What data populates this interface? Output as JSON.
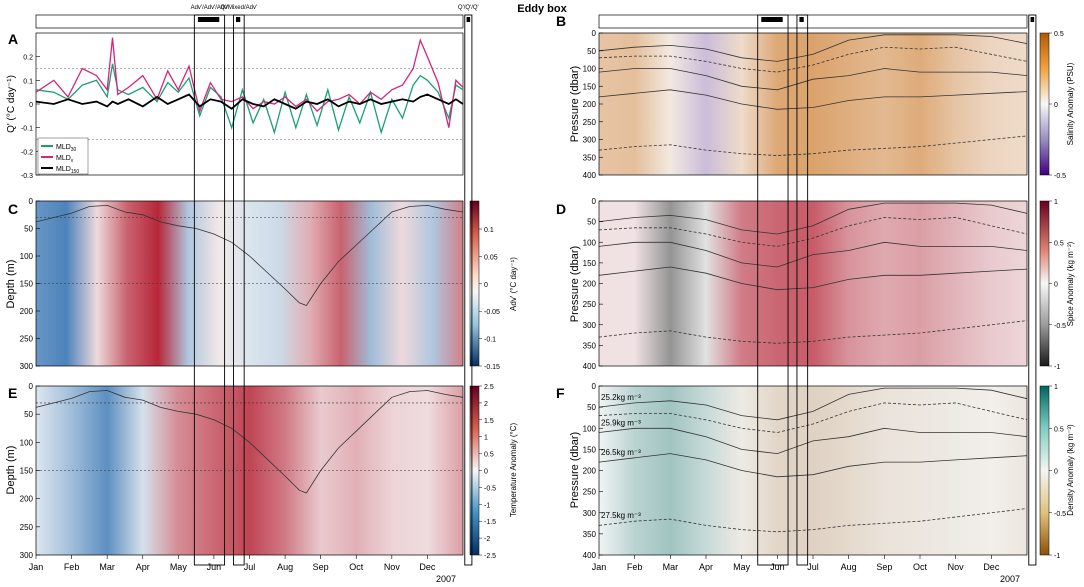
{
  "figure": {
    "title": "Eddy box"
  },
  "colors": {
    "mld30": "#1b9e77",
    "mldv": "#d6247a",
    "mld150": "#000000",
    "adv_warm": "#b2182b",
    "adv_cold": "#2166ac",
    "salt_pos": "#c96a10",
    "salt_neg": "#3f007d",
    "spice_pos": "#b2182b",
    "spice_neg": "#1a1a1a",
    "dens_pos": "#01665e",
    "dens_neg": "#8c510a"
  },
  "months": [
    "Jan",
    "Feb",
    "Mar",
    "Apr",
    "May",
    "Jun",
    "Jul",
    "Aug",
    "Sep",
    "Oct",
    "Nov",
    "Dec"
  ],
  "year_label": "2007",
  "event_boxes": [
    {
      "label": "Adv'/Adv'/Adv'",
      "start_month": 4.45,
      "end_month": 5.3,
      "fill_start": 4.55,
      "fill_end": 5.15
    },
    {
      "label": "Q'/Mixed/Adv'",
      "start_month": 5.55,
      "end_month": 5.85,
      "fill_start": 5.62,
      "fill_end": 5.74
    },
    {
      "label": "Q'/Q'/Q'",
      "start_month": 12.05,
      "end_month": 12.25,
      "fill_start": 12.1,
      "fill_end": 12.2
    }
  ],
  "panels": {
    "A": {
      "letter": "A",
      "ylabel": "Q' (°C day⁻¹)",
      "ylim": [
        -0.3,
        0.3
      ],
      "yticks": [
        "-0.3",
        "-0.2",
        "-0.1",
        "0",
        "0.1",
        "0.2"
      ],
      "ytick_values": [
        -0.3,
        -0.2,
        -0.1,
        0,
        0.1,
        0.2
      ],
      "reference_lines": [
        0.15,
        -0.15
      ],
      "legend": [
        "MLD",
        "MLD",
        "MLD"
      ],
      "legend_subscripts": [
        "30",
        "v",
        "150"
      ]
    },
    "B": {
      "letter": "B",
      "ylabel": "Pressure (dbar)",
      "cbar_label": "Salinity Anomaly (PSU)",
      "cbar_ticks": [
        "0.5",
        "0",
        "-0.5"
      ]
    },
    "C": {
      "letter": "C",
      "ylabel": "Depth (m)",
      "cbar_label": "Adv' (°C day⁻¹)",
      "cbar_ticks": [
        "0.1",
        "0.05",
        "0",
        "-0.05",
        "-0.1",
        "-0.15"
      ]
    },
    "D": {
      "letter": "D",
      "ylabel": "Pressure (dbar)",
      "cbar_label": "Spice Anomaly (kg m⁻³)",
      "cbar_ticks": [
        "1",
        "0.5",
        "0",
        "-0.5",
        "-1"
      ]
    },
    "E": {
      "letter": "E",
      "ylabel": "Depth (m)",
      "cbar_label": "Temperature Anomaly (°C)",
      "cbar_ticks": [
        "2.5",
        "2",
        "1.5",
        "1",
        "0.5",
        "0",
        "-0.5",
        "-1",
        "-1.5",
        "-2",
        "-2.5"
      ]
    },
    "F": {
      "letter": "F",
      "ylabel": "Pressure (dbar)",
      "cbar_label": "Density Anomaly (kg m⁻³)",
      "cbar_ticks": [
        "1",
        "0.5",
        "0",
        "-0.5",
        "-1"
      ],
      "isopycnal_labels": [
        "25.2kg m⁻³",
        "25.9kg m⁻³",
        "26.5kg m⁻³",
        "27.5kg m⁻³"
      ]
    }
  },
  "chart_data": [
    {
      "panel": "A",
      "type": "line",
      "title": "",
      "xlabel": "",
      "ylabel": "Q' (°C day⁻¹)",
      "ylim": [
        -0.3,
        0.3
      ],
      "x_month": [
        0,
        0.5,
        0.9,
        1.3,
        1.7,
        2.0,
        2.15,
        2.3,
        2.6,
        3.0,
        3.4,
        3.7,
        4.0,
        4.3,
        4.6,
        4.9,
        5.2,
        5.5,
        5.8,
        6.1,
        6.4,
        6.7,
        7.0,
        7.3,
        7.6,
        7.9,
        8.2,
        8.5,
        8.8,
        9.1,
        9.4,
        9.7,
        10.0,
        10.3,
        10.6,
        10.8,
        11.0,
        11.3,
        11.6,
        11.8,
        12.0
      ],
      "series": [
        {
          "name": "MLD30",
          "values": [
            0.06,
            0.05,
            0.02,
            0.08,
            0.1,
            0.03,
            0.17,
            0.06,
            0.04,
            0.07,
            0.01,
            0.09,
            0.05,
            0.11,
            -0.05,
            0.07,
            0.03,
            -0.1,
            0.06,
            -0.08,
            0.02,
            -0.12,
            0.05,
            -0.1,
            0.04,
            -0.09,
            0.06,
            -0.11,
            0.03,
            -0.08,
            0.05,
            -0.12,
            0.02,
            -0.06,
            0.08,
            0.12,
            0.1,
            0.05,
            -0.06,
            0.08,
            0.06
          ]
        },
        {
          "name": "MLDv",
          "values": [
            0.05,
            0.1,
            0.03,
            0.15,
            0.12,
            0.06,
            0.28,
            0.04,
            0.07,
            0.12,
            0.02,
            0.14,
            0.06,
            0.16,
            -0.03,
            0.09,
            0.02,
            0.01,
            0.03,
            -0.02,
            0.01,
            0.0,
            0.03,
            -0.01,
            0.02,
            -0.03,
            0.01,
            0.02,
            0.04,
            0.0,
            0.05,
            0.02,
            0.06,
            0.08,
            0.15,
            0.27,
            0.2,
            0.09,
            -0.1,
            0.1,
            0.07
          ]
        },
        {
          "name": "MLD150",
          "values": [
            0.01,
            0.0,
            0.02,
            0.0,
            0.01,
            -0.01,
            0.01,
            0.0,
            0.02,
            -0.01,
            0.03,
            0.0,
            0.02,
            0.04,
            -0.01,
            0.02,
            0.01,
            -0.02,
            0.02,
            0.0,
            -0.01,
            0.02,
            0.0,
            -0.02,
            0.01,
            0.0,
            0.02,
            -0.01,
            0.01,
            0.0,
            0.02,
            0.0,
            0.01,
            0.02,
            0.01,
            0.03,
            0.04,
            0.02,
            0.0,
            0.02,
            0.0
          ]
        }
      ]
    },
    {
      "panel": "C",
      "type": "heatmap",
      "ylabel": "Depth (m)",
      "ylim": [
        300,
        0
      ],
      "yticks": [
        0,
        50,
        100,
        150,
        200,
        250,
        300
      ],
      "clim": [
        -0.15,
        0.15
      ],
      "reference_depths": [
        30,
        150
      ],
      "anomaly_by_month": [
        -0.1,
        -0.12,
        0.02,
        0.1,
        0.14,
        -0.05,
        0.01,
        -0.02,
        -0.03,
        0.05,
        0.1,
        -0.06,
        0.02,
        -0.05,
        0.08
      ],
      "mld_month": [
        0,
        0.5,
        1.0,
        1.5,
        2.0,
        2.5,
        3.0,
        3.5,
        4.0,
        4.5,
        5.0,
        5.5,
        6.0,
        6.5,
        7.0,
        7.4,
        7.6,
        8.0,
        8.5,
        9.0,
        9.5,
        10.0,
        10.5,
        11.0,
        11.5,
        12.0
      ],
      "mld_depth": [
        38,
        30,
        22,
        10,
        8,
        20,
        25,
        38,
        45,
        50,
        60,
        75,
        100,
        130,
        160,
        185,
        190,
        150,
        110,
        80,
        50,
        20,
        10,
        8,
        15,
        20
      ]
    },
    {
      "panel": "E",
      "type": "heatmap",
      "ylabel": "Depth (m)",
      "ylim": [
        300,
        0
      ],
      "yticks": [
        0,
        50,
        100,
        150,
        200,
        250,
        300
      ],
      "clim": [
        -2.5,
        2.5
      ],
      "reference_depths": [
        30,
        150
      ],
      "anomaly_by_month": [
        -0.3,
        -1.0,
        -1.8,
        -0.4,
        1.2,
        1.6,
        2.0,
        1.4,
        0.5,
        0.8,
        0.4,
        0.3,
        1.0
      ],
      "mld_month": [
        0,
        0.5,
        1.0,
        1.5,
        2.0,
        2.5,
        3.0,
        3.5,
        4.0,
        4.5,
        5.0,
        5.5,
        6.0,
        6.5,
        7.0,
        7.4,
        7.6,
        8.0,
        8.5,
        9.0,
        9.5,
        10.0,
        10.5,
        11.0,
        11.5,
        12.0
      ],
      "mld_depth": [
        38,
        30,
        22,
        10,
        8,
        20,
        25,
        38,
        45,
        50,
        60,
        75,
        100,
        130,
        160,
        185,
        190,
        150,
        110,
        80,
        50,
        20,
        10,
        8,
        15,
        20
      ]
    },
    {
      "panel": "B",
      "type": "heatmap",
      "ylabel": "Pressure (dbar)",
      "ylim": [
        400,
        0
      ],
      "yticks": [
        0,
        50,
        100,
        150,
        200,
        250,
        300,
        350,
        400
      ],
      "clim": [
        -0.5,
        0.5
      ],
      "anomaly_by_month": [
        0.18,
        0.2,
        0.05,
        -0.12,
        0.1,
        0.28,
        0.3,
        0.26,
        0.22,
        0.27,
        0.18,
        0.12,
        0.1
      ]
    },
    {
      "panel": "D",
      "type": "heatmap",
      "ylabel": "Pressure (dbar)",
      "ylim": [
        400,
        0
      ],
      "yticks": [
        0,
        50,
        100,
        150,
        200,
        250,
        300,
        350,
        400
      ],
      "clim": [
        -1,
        1
      ],
      "anomaly_by_month": [
        0.1,
        0.1,
        -0.45,
        -0.1,
        0.55,
        0.65,
        0.7,
        0.45,
        0.35,
        0.4,
        0.3,
        0.2,
        0.15
      ]
    },
    {
      "panel": "F",
      "type": "heatmap",
      "ylabel": "Pressure (dbar)",
      "ylim": [
        400,
        0
      ],
      "yticks": [
        0,
        50,
        100,
        150,
        200,
        250,
        300,
        350,
        400
      ],
      "clim": [
        -1,
        1
      ],
      "anomaly_by_month": [
        0.02,
        0.25,
        0.35,
        0.2,
        -0.08,
        -0.2,
        -0.22,
        -0.18,
        -0.12,
        -0.1,
        -0.08,
        -0.05,
        -0.1
      ],
      "isopycnals": [
        {
          "label": "25.2kg m⁻³",
          "style": "solid",
          "pressure": [
            50,
            40,
            35,
            45,
            70,
            80,
            60,
            20,
            5,
            5,
            5,
            10,
            30
          ]
        },
        {
          "label": "",
          "style": "dashed",
          "pressure": [
            70,
            65,
            65,
            80,
            100,
            110,
            90,
            60,
            40,
            45,
            40,
            60,
            80
          ]
        },
        {
          "label": "25.9kg m⁻³",
          "style": "solid",
          "pressure": [
            110,
            100,
            100,
            120,
            150,
            160,
            130,
            120,
            100,
            110,
            110,
            110,
            120
          ]
        },
        {
          "label": "26.5kg m⁻³",
          "style": "solid",
          "pressure": [
            180,
            170,
            160,
            175,
            200,
            215,
            210,
            190,
            180,
            180,
            175,
            170,
            165
          ]
        },
        {
          "label": "27.5kg m⁻³",
          "style": "dashed",
          "pressure": [
            330,
            320,
            315,
            330,
            340,
            345,
            340,
            330,
            325,
            320,
            310,
            300,
            290
          ]
        }
      ]
    }
  ]
}
